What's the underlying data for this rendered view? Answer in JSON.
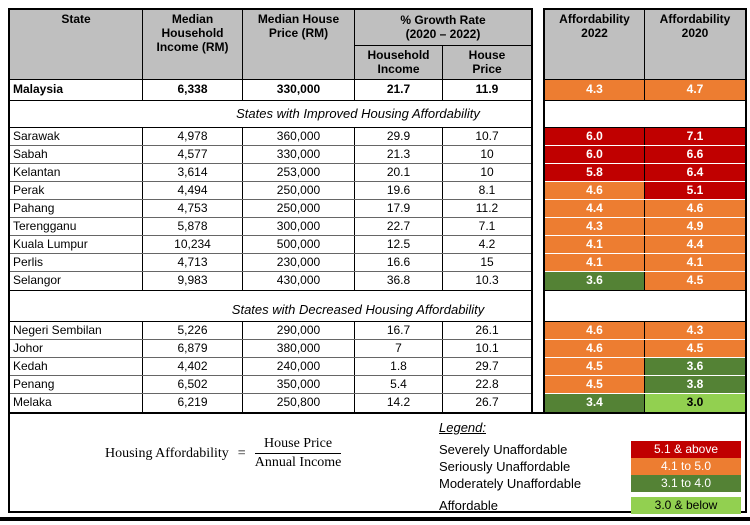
{
  "table": {
    "headers": {
      "state": "State",
      "income": "Median\nHousehold\nIncome (RM)",
      "price": "Median House\nPrice (RM)",
      "growth": "% Growth Rate\n(2020 – 2022)",
      "growth_income": "Household\nIncome",
      "growth_price": "House\nPrice",
      "aff2022": "Affordability\n2022",
      "aff2020": "Affordability\n2020"
    },
    "malaysia": {
      "state": "Malaysia",
      "income": "6,338",
      "price": "330,000",
      "growth_income": "21.7",
      "growth_price": "11.9",
      "aff2022": "4.3",
      "aff2022_level": "orange",
      "aff2020": "4.7",
      "aff2020_level": "orange"
    },
    "sections": [
      {
        "title": "States with Improved Housing Affordability",
        "rows": [
          {
            "state": "Sarawak",
            "income": "4,978",
            "price": "360,000",
            "growth_income": "29.9",
            "growth_price": "10.7",
            "aff2022": "6.0",
            "aff2022_level": "red",
            "aff2020": "7.1",
            "aff2020_level": "red"
          },
          {
            "state": "Sabah",
            "income": "4,577",
            "price": "330,000",
            "growth_income": "21.3",
            "growth_price": "10",
            "aff2022": "6.0",
            "aff2022_level": "red",
            "aff2020": "6.6",
            "aff2020_level": "red"
          },
          {
            "state": "Kelantan",
            "income": "3,614",
            "price": "253,000",
            "growth_income": "20.1",
            "growth_price": "10",
            "aff2022": "5.8",
            "aff2022_level": "red",
            "aff2020": "6.4",
            "aff2020_level": "red"
          },
          {
            "state": "Perak",
            "income": "4,494",
            "price": "250,000",
            "growth_income": "19.6",
            "growth_price": "8.1",
            "aff2022": "4.6",
            "aff2022_level": "orange",
            "aff2020": "5.1",
            "aff2020_level": "red"
          },
          {
            "state": "Pahang",
            "income": "4,753",
            "price": "250,000",
            "growth_income": "17.9",
            "growth_price": "11.2",
            "aff2022": "4.4",
            "aff2022_level": "orange",
            "aff2020": "4.6",
            "aff2020_level": "orange"
          },
          {
            "state": "Terengganu",
            "income": "5,878",
            "price": "300,000",
            "growth_income": "22.7",
            "growth_price": "7.1",
            "aff2022": "4.3",
            "aff2022_level": "orange",
            "aff2020": "4.9",
            "aff2020_level": "orange"
          },
          {
            "state": "Kuala Lumpur",
            "income": "10,234",
            "price": "500,000",
            "growth_income": "12.5",
            "growth_price": "4.2",
            "aff2022": "4.1",
            "aff2022_level": "orange",
            "aff2020": "4.4",
            "aff2020_level": "orange"
          },
          {
            "state": "Perlis",
            "income": "4,713",
            "price": "230,000",
            "growth_income": "16.6",
            "growth_price": "15",
            "aff2022": "4.1",
            "aff2022_level": "orange",
            "aff2020": "4.1",
            "aff2020_level": "orange"
          },
          {
            "state": "Selangor",
            "income": "9,983",
            "price": "430,000",
            "growth_income": "36.8",
            "growth_price": "10.3",
            "aff2022": "3.6",
            "aff2022_level": "dark_green",
            "aff2020": "4.5",
            "aff2020_level": "orange"
          }
        ]
      },
      {
        "title": "States with Decreased Housing Affordability",
        "rows": [
          {
            "state": "Negeri Sembilan",
            "income": "5,226",
            "price": "290,000",
            "growth_income": "16.7",
            "growth_price": "26.1",
            "aff2022": "4.6",
            "aff2022_level": "orange",
            "aff2020": "4.3",
            "aff2020_level": "orange"
          },
          {
            "state": "Johor",
            "income": "6,879",
            "price": "380,000",
            "growth_income": "7",
            "growth_price": "10.1",
            "aff2022": "4.6",
            "aff2022_level": "orange",
            "aff2020": "4.5",
            "aff2020_level": "orange"
          },
          {
            "state": "Kedah",
            "income": "4,402",
            "price": "240,000",
            "growth_income": "1.8",
            "growth_price": "29.7",
            "aff2022": "4.5",
            "aff2022_level": "orange",
            "aff2020": "3.6",
            "aff2020_level": "dark_green"
          },
          {
            "state": "Penang",
            "income": "6,502",
            "price": "350,000",
            "growth_income": "5.4",
            "growth_price": "22.8",
            "aff2022": "4.5",
            "aff2022_level": "orange",
            "aff2020": "3.8",
            "aff2020_level": "dark_green"
          },
          {
            "state": "Melaka",
            "income": "6,219",
            "price": "250,800",
            "growth_income": "14.2",
            "growth_price": "26.7",
            "aff2022": "3.4",
            "aff2022_level": "dark_green",
            "aff2020": "3.0",
            "aff2020_level": "light_green"
          }
        ]
      }
    ]
  },
  "formula": {
    "lhs": "Housing Affordability",
    "eq": "=",
    "numerator": "House Price",
    "denominator": "Annual Income"
  },
  "legend": {
    "title": "Legend:",
    "items": [
      {
        "label": "Severely Unaffordable",
        "range": "5.1 & above",
        "color": "#C00000",
        "text_color": "#FFFFFF",
        "gap_before": false
      },
      {
        "label": "Seriously Unaffordable",
        "range": "4.1 to 5.0",
        "color": "#ED7D31",
        "text_color": "#FFFFFF",
        "gap_before": false
      },
      {
        "label": "Moderately Unaffordable",
        "range": "3.1 to 4.0",
        "color": "#548235",
        "text_color": "#FFFFFF",
        "gap_before": false
      },
      {
        "label": "Affordable",
        "range": "3.0 & below",
        "color": "#92D050",
        "text_color": "#000000",
        "gap_before": true
      }
    ]
  },
  "colors": {
    "red": "#C00000",
    "orange": "#ED7D31",
    "dark_green": "#548235",
    "light_green": "#92D050",
    "header_bg": "#BFBFBF"
  }
}
